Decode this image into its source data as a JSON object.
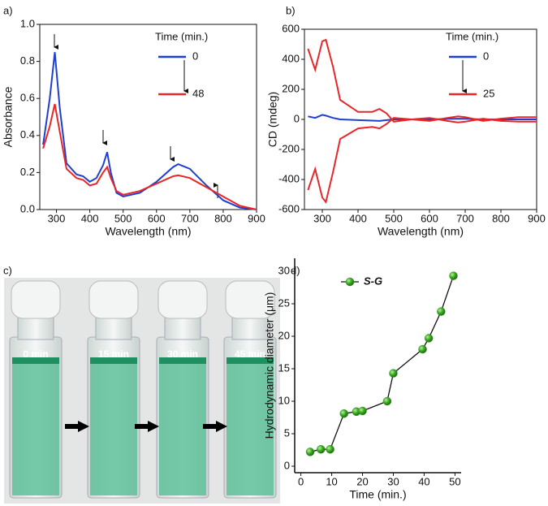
{
  "chart_data": [
    {
      "type": "line",
      "panel_label": "a)",
      "xlabel": "Wavelength (nm)",
      "ylabel": "Absorbance",
      "x": [
        260,
        280,
        295,
        310,
        330,
        360,
        380,
        400,
        420,
        440,
        452,
        463,
        480,
        500,
        550,
        600,
        650,
        665,
        700,
        750,
        800,
        850,
        900
      ],
      "series": [
        {
          "name": "0",
          "color": "#1f3fd0",
          "values": [
            0.35,
            0.6,
            0.85,
            0.55,
            0.25,
            0.19,
            0.18,
            0.15,
            0.17,
            0.24,
            0.31,
            0.2,
            0.09,
            0.07,
            0.09,
            0.15,
            0.23,
            0.245,
            0.22,
            0.13,
            0.05,
            0.01,
            0
          ]
        },
        {
          "name": "48",
          "color": "#e8262a",
          "values": [
            0.33,
            0.45,
            0.57,
            0.42,
            0.22,
            0.17,
            0.16,
            0.13,
            0.14,
            0.2,
            0.23,
            0.17,
            0.1,
            0.08,
            0.1,
            0.14,
            0.18,
            0.185,
            0.17,
            0.12,
            0.07,
            0.02,
            0
          ]
        }
      ],
      "legend_title": "Time (min.)",
      "xlim": [
        250,
        900
      ],
      "xticks": [
        300,
        400,
        500,
        600,
        700,
        800,
        900
      ],
      "ylim": [
        0,
        1
      ],
      "yticks": [
        {
          "value": 0,
          "label": "0.0"
        },
        0.2,
        0.4,
        0.6,
        0.8,
        {
          "value": 1,
          "label": "1.0"
        }
      ],
      "frame": true,
      "markers": false
    },
    {
      "type": "line",
      "panel_label": "b)",
      "xlabel": "Wavelength (nm)",
      "ylabel": "CD (mdeg)",
      "x": [
        260,
        280,
        300,
        310,
        330,
        350,
        400,
        440,
        460,
        480,
        500,
        550,
        600,
        650,
        680,
        700,
        750,
        800,
        850,
        900
      ],
      "series": [
        {
          "name": "0",
          "color": "#1f3fd0",
          "values": [
            20,
            10,
            30,
            25,
            10,
            0,
            -5,
            -8,
            -10,
            -5,
            0,
            0,
            0,
            3,
            5,
            4,
            0,
            0,
            0,
            0
          ]
        },
        {
          "name": "25",
          "color": "#e8262a",
          "values": [
            470,
            330,
            520,
            530,
            350,
            130,
            50,
            50,
            70,
            40,
            -15,
            0,
            -10,
            10,
            20,
            15,
            -10,
            5,
            15,
            15
          ]
        },
        {
          "color": "#e8262a",
          "values": [
            -470,
            -330,
            -520,
            -550,
            -350,
            -130,
            -60,
            -50,
            -60,
            -30,
            10,
            0,
            10,
            -10,
            -20,
            -15,
            5,
            -10,
            -15,
            -15
          ]
        }
      ],
      "legend_title": "Time (min.)",
      "xlim": [
        250,
        900
      ],
      "xticks": [
        300,
        400,
        500,
        600,
        700,
        800,
        900
      ],
      "ylim": [
        -600,
        600
      ],
      "yticks": [
        -600,
        -400,
        -200,
        0,
        200,
        400,
        600
      ],
      "frame": true,
      "markers": false
    },
    {
      "type": "line",
      "panel_label": "d)",
      "xlabel": "Time (min.)",
      "ylabel": "Hydrodynamic diameter (μm)",
      "x": [
        3,
        6.5,
        9.5,
        14,
        18,
        20,
        28,
        30,
        39.5,
        41.5,
        45.5,
        49.5
      ],
      "series": [
        {
          "name": "S-G",
          "color": "#2f9a1e",
          "values": [
            2.2,
            2.6,
            2.6,
            8.1,
            8.4,
            8.5,
            10,
            14.3,
            18,
            19.7,
            23.8,
            29.3
          ]
        }
      ],
      "xlim": [
        -2,
        52
      ],
      "xticks": [
        0,
        10,
        20,
        30,
        40,
        50
      ],
      "ylim": [
        -1,
        32
      ],
      "yticks": [
        0,
        5,
        10,
        15,
        20,
        25,
        30
      ],
      "frame": false,
      "markers": true
    }
  ],
  "photo": {
    "panel_label": "c)",
    "labels": [
      "0 min",
      "15 min",
      "30 min",
      "45 min"
    ]
  }
}
